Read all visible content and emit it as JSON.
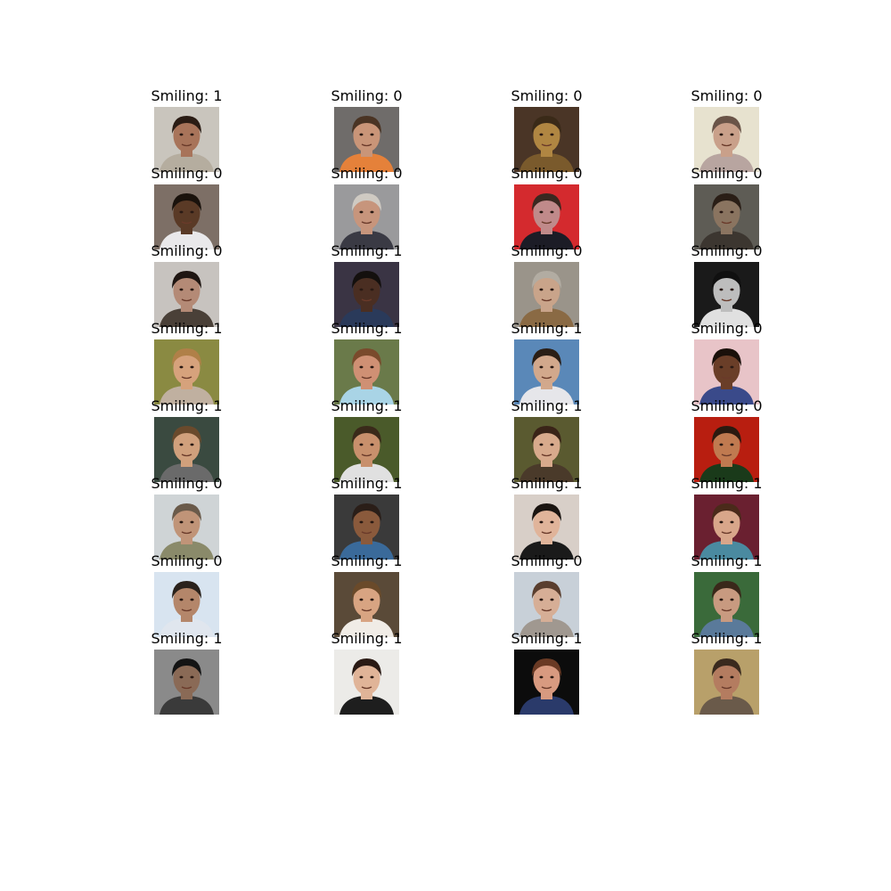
{
  "grid": {
    "rows": 8,
    "cols": 4,
    "cells": [
      {
        "label": "Smiling: 1",
        "bg": "#c9c5bd",
        "skin": "#a8745a",
        "hair": "#2a1c14",
        "shirt": "#b5ad9f"
      },
      {
        "label": "Smiling: 0",
        "bg": "#6f6c6a",
        "skin": "#c99578",
        "hair": "#4a3424",
        "shirt": "#e5813a"
      },
      {
        "label": "Smiling: 0",
        "bg": "#4a3526",
        "skin": "#b08642",
        "hair": "#3a2a18",
        "shirt": "#7a5a2c"
      },
      {
        "label": "Smiling: 0",
        "bg": "#e7e2cf",
        "skin": "#c9a08a",
        "hair": "#6a5448",
        "shirt": "#b8a5a0"
      },
      {
        "label": "Smiling: 0",
        "bg": "#7d6f66",
        "skin": "#5a3a26",
        "hair": "#1a120c",
        "shirt": "#e9e8ea"
      },
      {
        "label": "Smiling: 0",
        "bg": "#9a9a9c",
        "skin": "#c7957c",
        "hair": "#cfcac2",
        "shirt": "#3a3a44"
      },
      {
        "label": "Smiling: 0",
        "bg": "#d42a2e",
        "skin": "#c08a8a",
        "hair": "#3a2820",
        "shirt": "#1c1c26"
      },
      {
        "label": "Smiling: 0",
        "bg": "#5e5c55",
        "skin": "#8a7460",
        "hair": "#2a1e16",
        "shirt": "#3c3630"
      },
      {
        "label": "Smiling: 0",
        "bg": "#c7c3bf",
        "skin": "#b48a76",
        "hair": "#1f1612",
        "shirt": "#4a4038"
      },
      {
        "label": "Smiling: 1",
        "bg": "#3a3444",
        "skin": "#4a2e22",
        "hair": "#14100e",
        "shirt": "#2a3a5a"
      },
      {
        "label": "Smiling: 0",
        "bg": "#9a948a",
        "skin": "#c9a48a",
        "hair": "#b2aca2",
        "shirt": "#8a6a44"
      },
      {
        "label": "Smiling: 0",
        "bg": "#1a1a1a",
        "skin": "#bdbdbd",
        "hair": "#101010",
        "shirt": "#e0e0e0"
      },
      {
        "label": "Smiling: 1",
        "bg": "#8a8a42",
        "skin": "#d6a27c",
        "hair": "#b08048",
        "shirt": "#c0b0a0"
      },
      {
        "label": "Smiling: 1",
        "bg": "#6a7a4a",
        "skin": "#cf9074",
        "hair": "#7a4a2c",
        "shirt": "#a9d4e6"
      },
      {
        "label": "Smiling: 1",
        "bg": "#5a88b8",
        "skin": "#d2a88c",
        "hair": "#2a1e16",
        "shirt": "#e6e6ea"
      },
      {
        "label": "Smiling: 0",
        "bg": "#e8c4c8",
        "skin": "#6a3e28",
        "hair": "#1a100a",
        "shirt": "#3a4a8a"
      },
      {
        "label": "Smiling: 1",
        "bg": "#3a4a40",
        "skin": "#d0a07c",
        "hair": "#6a4a2c",
        "shirt": "#6a6a6a"
      },
      {
        "label": "Smiling: 1",
        "bg": "#4a5a2a",
        "skin": "#c8906c",
        "hair": "#3a2a1a",
        "shirt": "#e0e0e0"
      },
      {
        "label": "Smiling: 1",
        "bg": "#5a5a30",
        "skin": "#d8aa8c",
        "hair": "#3a2418",
        "shirt": "#4a3a2a"
      },
      {
        "label": "Smiling: 0",
        "bg": "#b81e10",
        "skin": "#c07a50",
        "hair": "#2a1a10",
        "shirt": "#1a3a1a"
      },
      {
        "label": "Smiling: 0",
        "bg": "#cfd4d6",
        "skin": "#c09478",
        "hair": "#6a5a4a",
        "shirt": "#8a8a6a"
      },
      {
        "label": "Smiling: 1",
        "bg": "#3a3a3a",
        "skin": "#8a5a3c",
        "hair": "#2a1e18",
        "shirt": "#3a6a9a"
      },
      {
        "label": "Smiling: 1",
        "bg": "#d8cfc8",
        "skin": "#e0b49a",
        "hair": "#1a1410",
        "shirt": "#1a1a1a"
      },
      {
        "label": "Smiling: 1",
        "bg": "#6a2030",
        "skin": "#d8a68a",
        "hair": "#4a2a1a",
        "shirt": "#4a8aa0"
      },
      {
        "label": "Smiling: 0",
        "bg": "#d8e4f0",
        "skin": "#b4866a",
        "hair": "#2a221c",
        "shirt": "#e0e6ee"
      },
      {
        "label": "Smiling: 1",
        "bg": "#5a4a38",
        "skin": "#d8a482",
        "hair": "#6a4a2a",
        "shirt": "#f0ece6"
      },
      {
        "label": "Smiling: 0",
        "bg": "#c8d0d8",
        "skin": "#d6ae96",
        "hair": "#5a3e2e",
        "shirt": "#a09890"
      },
      {
        "label": "Smiling: 1",
        "bg": "#3a6a3a",
        "skin": "#c89a80",
        "hair": "#3a281a",
        "shirt": "#5a7a9a"
      },
      {
        "label": "Smiling: 1",
        "bg": "#8a8a8a",
        "skin": "#8a6a56",
        "hair": "#141414",
        "shirt": "#3a3a3a"
      },
      {
        "label": "Smiling: 1",
        "bg": "#ecebe8",
        "skin": "#e0b498",
        "hair": "#2a1a14",
        "shirt": "#1e1e1e"
      },
      {
        "label": "Smiling: 1",
        "bg": "#0c0c0c",
        "skin": "#d89a80",
        "hair": "#6a3a24",
        "shirt": "#2a3a6a"
      },
      {
        "label": "Smiling: 1",
        "bg": "#b8a06a",
        "skin": "#b47c60",
        "hair": "#3a2a1e",
        "shirt": "#6a5a4a"
      }
    ]
  }
}
